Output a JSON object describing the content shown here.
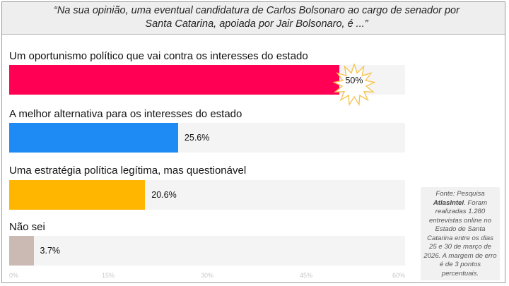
{
  "question": "“Na sua opinião, uma eventual candidatura de Carlos Bolsonaro ao cargo de senador por Santa Catarina, apoiada por Jair Bolsonaro, é ...”",
  "chart_data": {
    "type": "bar",
    "orientation": "horizontal",
    "categories": [
      "Um oportunismo político que vai contra os interesses do estado",
      "A melhor alternativa para os interesses do estado",
      "Uma estratégia política legítima, mas questionável",
      "Não sei"
    ],
    "values": [
      50,
      25.6,
      20.6,
      3.7
    ],
    "value_labels": [
      "50%",
      "25.6%",
      "20.6%",
      "3.7%"
    ],
    "colors": [
      "#ff0054",
      "#1e8bf5",
      "#ffb600",
      "#cbbab3"
    ],
    "xlim": [
      0,
      60
    ],
    "x_ticks": [
      "0%",
      "15%",
      "30%",
      "45%",
      "60%"
    ],
    "x_tick_values": [
      0,
      15,
      30,
      45,
      60
    ],
    "highlight_index": 0,
    "highlight_color": "#f6c34a"
  },
  "source": {
    "prefix": "Fonte: Pesquisa ",
    "brand": "AtlasIntel",
    "text": ". Foram realizadas 1.280 entrevistas online no Estado de Santa Catarina entre os dias 25 e 30 de março de 2026. A margem de erro é de 3 pontos percentuais."
  }
}
